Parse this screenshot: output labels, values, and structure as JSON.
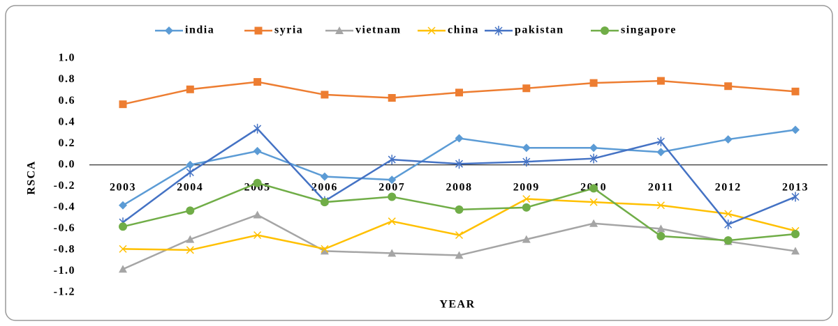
{
  "chart_data": {
    "type": "line",
    "xlabel": "YEAR",
    "ylabel": "RSCA",
    "categories": [
      "2003",
      "2004",
      "2005",
      "2006",
      "2007",
      "2008",
      "2009",
      "2010",
      "2011",
      "2012",
      "2013"
    ],
    "series": [
      {
        "name": "india",
        "color": "#5b9bd5",
        "marker": "diamond",
        "values": [
          -0.38,
          0.0,
          0.13,
          -0.11,
          -0.14,
          0.25,
          0.16,
          0.16,
          0.12,
          0.24,
          0.33
        ]
      },
      {
        "name": "syria",
        "color": "#ed7d31",
        "marker": "square",
        "values": [
          0.57,
          0.71,
          0.78,
          0.66,
          0.63,
          0.68,
          0.72,
          0.77,
          0.79,
          0.74,
          0.69
        ]
      },
      {
        "name": "vietnam",
        "color": "#a5a5a5",
        "marker": "triangle",
        "values": [
          -0.98,
          -0.7,
          -0.47,
          -0.81,
          -0.83,
          -0.85,
          -0.7,
          -0.55,
          -0.6,
          -0.72,
          -0.81
        ]
      },
      {
        "name": "china",
        "color": "#ffc000",
        "marker": "x",
        "values": [
          -0.79,
          -0.8,
          -0.66,
          -0.79,
          -0.53,
          -0.66,
          -0.32,
          -0.35,
          -0.38,
          -0.46,
          -0.62
        ]
      },
      {
        "name": "pakistan",
        "color": "#4472c4",
        "marker": "star",
        "values": [
          -0.54,
          -0.07,
          0.34,
          -0.34,
          0.05,
          0.01,
          0.03,
          0.06,
          0.22,
          -0.56,
          -0.3
        ]
      },
      {
        "name": "singapore",
        "color": "#70ad47",
        "marker": "circle",
        "values": [
          -0.58,
          -0.43,
          -0.17,
          -0.35,
          -0.3,
          -0.42,
          -0.4,
          -0.22,
          -0.67,
          -0.71,
          -0.65
        ]
      }
    ],
    "ylim": [
      -1.2,
      1.0
    ],
    "yticks": [
      {
        "value": 1.0,
        "label": "1.0"
      },
      0.8,
      0.6,
      0.4,
      0.2,
      {
        "value": 0,
        "label": "0.0"
      },
      -0.2,
      -0.4,
      -0.6,
      -0.8,
      {
        "value": -1.0,
        "label": "-1.0"
      },
      -1.2
    ],
    "legend": "top",
    "grid": false
  }
}
